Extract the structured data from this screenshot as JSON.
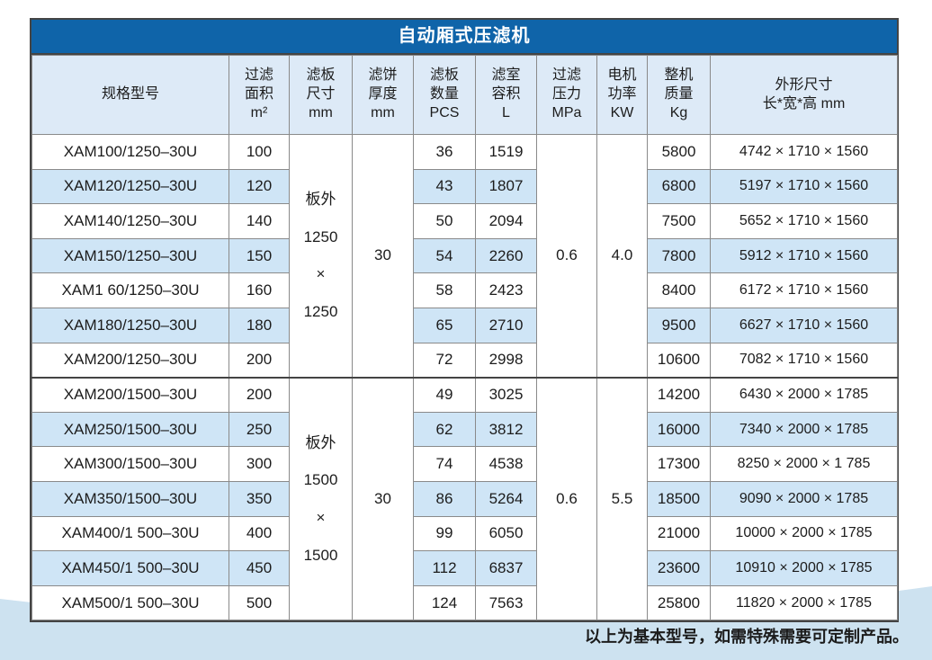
{
  "page": {
    "footer_note": "以上为基本型号，如需特殊需要可定制产品。",
    "colors": {
      "title_bar": "#0f64a9",
      "header_background": "#ddeaf7",
      "row_stripe": "#cfe5f6",
      "bottom_wave": "#cde2f0",
      "grid_line": "#8a8a8a"
    }
  },
  "table": {
    "title": "自动厢式压滤机",
    "columns": [
      {
        "id": "model",
        "lines": [
          "规格型号"
        ]
      },
      {
        "id": "filter-area",
        "lines": [
          "过滤",
          "面积",
          "m²"
        ]
      },
      {
        "id": "plate-size",
        "lines": [
          "滤板",
          "尺寸",
          "mm"
        ]
      },
      {
        "id": "cake-thickness",
        "lines": [
          "滤饼",
          "厚度",
          "mm"
        ]
      },
      {
        "id": "plate-count",
        "lines": [
          "滤板",
          "数量",
          "PCS"
        ]
      },
      {
        "id": "chamber-volume",
        "lines": [
          "滤室",
          "容积",
          "L"
        ]
      },
      {
        "id": "filter-pressure",
        "lines": [
          "过滤",
          "压力",
          "MPa"
        ]
      },
      {
        "id": "motor-power",
        "lines": [
          "电机",
          "功率",
          "KW"
        ]
      },
      {
        "id": "machine-mass",
        "lines": [
          "整机",
          "质量",
          "Kg"
        ]
      },
      {
        "id": "dimensions",
        "lines": [
          "外形尺寸",
          "长*宽*高 mm"
        ]
      }
    ],
    "groups": [
      {
        "plate_size_lines": [
          "板外",
          "1250",
          "×",
          "1250"
        ],
        "cake_thickness": "30",
        "filter_pressure": "0.6",
        "motor_power": "4.0",
        "rows": [
          {
            "model": "XAM100/1250–30U",
            "area": "100",
            "pcs": "36",
            "volume": "1519",
            "mass": "5800",
            "dims": "4742 × 1710 × 1560"
          },
          {
            "model": "XAM120/1250–30U",
            "area": "120",
            "pcs": "43",
            "volume": "1807",
            "mass": "6800",
            "dims": "5197 × 1710 × 1560"
          },
          {
            "model": "XAM140/1250–30U",
            "area": "140",
            "pcs": "50",
            "volume": "2094",
            "mass": "7500",
            "dims": "5652 × 1710 × 1560"
          },
          {
            "model": "XAM150/1250–30U",
            "area": "150",
            "pcs": "54",
            "volume": "2260",
            "mass": "7800",
            "dims": "5912 × 1710 × 1560"
          },
          {
            "model": "XAM1 60/1250–30U",
            "area": "160",
            "pcs": "58",
            "volume": "2423",
            "mass": "8400",
            "dims": "6172 × 1710 × 1560"
          },
          {
            "model": "XAM180/1250–30U",
            "area": "180",
            "pcs": "65",
            "volume": "2710",
            "mass": "9500",
            "dims": "6627 × 1710 × 1560"
          },
          {
            "model": "XAM200/1250–30U",
            "area": "200",
            "pcs": "72",
            "volume": "2998",
            "mass": "10600",
            "dims": "7082 × 1710 × 1560"
          }
        ]
      },
      {
        "plate_size_lines": [
          "板外",
          "1500",
          "×",
          "1500"
        ],
        "cake_thickness": "30",
        "filter_pressure": "0.6",
        "motor_power": "5.5",
        "rows": [
          {
            "model": "XAM200/1500–30U",
            "area": "200",
            "pcs": "49",
            "volume": "3025",
            "mass": "14200",
            "dims": "6430 × 2000 × 1785"
          },
          {
            "model": "XAM250/1500–30U",
            "area": "250",
            "pcs": "62",
            "volume": "3812",
            "mass": "16000",
            "dims": "7340 × 2000 × 1785"
          },
          {
            "model": "XAM300/1500–30U",
            "area": "300",
            "pcs": "74",
            "volume": "4538",
            "mass": "17300",
            "dims": "8250 × 2000 × 1 785"
          },
          {
            "model": "XAM350/1500–30U",
            "area": "350",
            "pcs": "86",
            "volume": "5264",
            "mass": "18500",
            "dims": "9090 × 2000 × 1785"
          },
          {
            "model": "XAM400/1 500–30U",
            "area": "400",
            "pcs": "99",
            "volume": "6050",
            "mass": "21000",
            "dims": "10000 × 2000 × 1785"
          },
          {
            "model": "XAM450/1 500–30U",
            "area": "450",
            "pcs": "112",
            "volume": "6837",
            "mass": "23600",
            "dims": "10910 × 2000 × 1785"
          },
          {
            "model": "XAM500/1 500–30U",
            "area": "500",
            "pcs": "124",
            "volume": "7563",
            "mass": "25800",
            "dims": "11820 × 2000 × 1785"
          }
        ]
      }
    ]
  }
}
